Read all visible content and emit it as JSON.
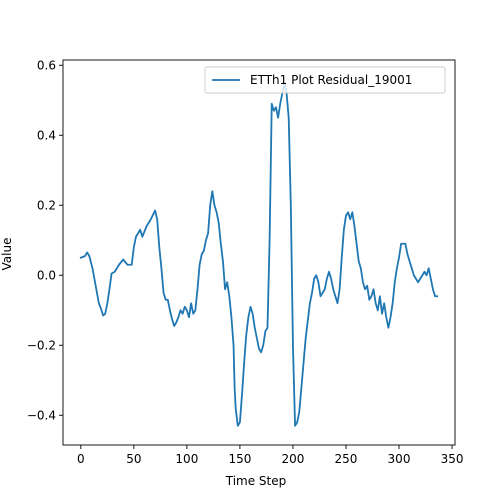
{
  "chart_data": {
    "type": "line",
    "title": "",
    "xlabel": "Time Step",
    "ylabel": "Value",
    "xlim": [
      -16.8,
      352.8
    ],
    "ylim": [
      -0.485,
      0.615
    ],
    "xticks": [
      0,
      50,
      100,
      150,
      200,
      250,
      300,
      350
    ],
    "yticks": [
      -0.4,
      -0.2,
      0.0,
      0.2,
      0.4,
      0.6
    ],
    "xtick_labels": [
      "0",
      "50",
      "100",
      "150",
      "200",
      "250",
      "300",
      "350"
    ],
    "ytick_labels": [
      "−0.4",
      "−0.2",
      "0.0",
      "0.2",
      "0.4",
      "0.6"
    ],
    "grid": false,
    "legend_position": "top-right",
    "series": [
      {
        "name": "ETTh1 Plot Residual_19001",
        "color": "#1f77b4",
        "x": [
          0,
          4,
          6,
          8,
          11,
          14,
          17,
          19,
          21,
          23,
          25,
          27,
          29,
          32,
          36,
          40,
          44,
          48,
          50,
          52,
          54,
          56,
          58,
          62,
          66,
          70,
          72,
          74,
          76,
          78,
          80,
          82,
          84,
          86,
          88,
          90,
          92,
          94,
          96,
          98,
          100,
          102,
          104,
          106,
          108,
          110,
          112,
          114,
          116,
          118,
          120,
          122,
          124,
          126,
          128,
          130,
          132,
          134,
          136,
          138,
          140,
          142,
          144,
          145,
          146,
          148,
          150,
          152,
          154,
          156,
          158,
          160,
          162,
          164,
          166,
          168,
          170,
          172,
          174,
          176,
          178,
          180,
          182,
          184,
          186,
          188,
          190,
          192,
          194,
          196,
          198,
          200,
          202,
          204,
          206,
          208,
          210,
          212,
          214,
          216,
          218,
          220,
          222,
          224,
          226,
          228,
          230,
          232,
          234,
          236,
          238,
          240,
          242,
          244,
          246,
          248,
          250,
          252,
          254,
          256,
          258,
          260,
          262,
          264,
          266,
          268,
          270,
          272,
          274,
          276,
          278,
          280,
          282,
          284,
          286,
          288,
          290,
          292,
          294,
          296,
          298,
          300,
          302,
          304,
          306,
          308,
          310,
          312,
          314,
          316,
          318,
          320,
          322,
          324,
          326,
          328,
          330,
          332,
          334,
          336
        ],
        "y": [
          0.05,
          0.055,
          0.065,
          0.055,
          0.02,
          -0.03,
          -0.08,
          -0.095,
          -0.115,
          -0.11,
          -0.08,
          -0.04,
          0.005,
          0.01,
          0.03,
          0.045,
          0.03,
          0.03,
          0.08,
          0.11,
          0.12,
          0.13,
          0.11,
          0.14,
          0.16,
          0.185,
          0.16,
          0.08,
          0.02,
          -0.05,
          -0.07,
          -0.07,
          -0.1,
          -0.125,
          -0.145,
          -0.135,
          -0.12,
          -0.1,
          -0.11,
          -0.09,
          -0.1,
          -0.12,
          -0.08,
          -0.11,
          -0.1,
          -0.04,
          0.03,
          0.06,
          0.07,
          0.1,
          0.12,
          0.2,
          0.24,
          0.2,
          0.18,
          0.15,
          0.09,
          0.04,
          -0.04,
          -0.02,
          -0.06,
          -0.12,
          -0.2,
          -0.32,
          -0.38,
          -0.43,
          -0.42,
          -0.34,
          -0.25,
          -0.17,
          -0.12,
          -0.09,
          -0.11,
          -0.15,
          -0.18,
          -0.21,
          -0.22,
          -0.2,
          -0.16,
          -0.15,
          0.1,
          0.49,
          0.47,
          0.48,
          0.45,
          0.49,
          0.52,
          0.55,
          0.52,
          0.45,
          0.2,
          -0.2,
          -0.43,
          -0.42,
          -0.39,
          -0.32,
          -0.25,
          -0.18,
          -0.13,
          -0.08,
          -0.05,
          -0.01,
          0.0,
          -0.02,
          -0.06,
          -0.05,
          -0.04,
          -0.01,
          0.01,
          -0.01,
          -0.04,
          -0.06,
          -0.08,
          -0.04,
          0.05,
          0.13,
          0.17,
          0.18,
          0.16,
          0.18,
          0.14,
          0.09,
          0.04,
          0.02,
          -0.02,
          -0.04,
          -0.03,
          -0.07,
          -0.06,
          -0.04,
          -0.08,
          -0.1,
          -0.06,
          -0.11,
          -0.08,
          -0.12,
          -0.15,
          -0.12,
          -0.08,
          -0.02,
          0.02,
          0.05,
          0.09,
          0.09,
          0.09,
          0.06,
          0.04,
          0.02,
          0.0,
          -0.01,
          -0.02,
          -0.01,
          0.0,
          0.01,
          0.0,
          0.02,
          -0.01,
          -0.04,
          -0.06,
          -0.06
        ]
      }
    ]
  }
}
